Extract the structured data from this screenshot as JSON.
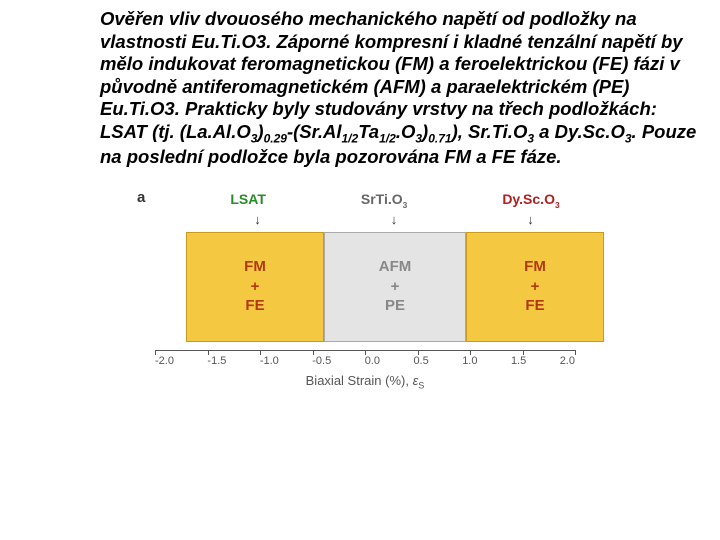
{
  "paragraph": {
    "runs": [
      {
        "t": "Ověřen vliv dvouosého mechanického napětí od podložky na vlastnosti Eu.Ti.O3. Záporné kompresní i kladné tenzální napětí by mělo indukovat feromagnetickou (FM) a feroelektrickou (FE) fázi v původně antiferomagnetickém (AFM) a paraelektrickém (PE) Eu.Ti.O3. Prakticky byly studovány vrstvy na třech podložkách: LSAT (tj. (La.Al.O"
      },
      {
        "t": "3",
        "cls": "sub"
      },
      {
        "t": ")"
      },
      {
        "t": "0.29",
        "cls": "sub"
      },
      {
        "t": "-(Sr.Al"
      },
      {
        "t": "1/2",
        "cls": "sub"
      },
      {
        "t": "Ta"
      },
      {
        "t": "1/2",
        "cls": "sub"
      },
      {
        "t": ".O"
      },
      {
        "t": "3",
        "cls": "sub"
      },
      {
        "t": ")"
      },
      {
        "t": "0.71",
        "cls": "sub"
      },
      {
        "t": "), Sr.Ti.O"
      },
      {
        "t": "3",
        "cls": "sub"
      },
      {
        "t": " a Dy.Sc.O"
      },
      {
        "t": "3",
        "cls": "sub"
      },
      {
        "t": ". Pouze na poslední podložce byla pozorována FM a FE fáze."
      }
    ]
  },
  "diagram": {
    "panel_label": "a",
    "substrates": {
      "lsat": "LSAT",
      "sto_pre": "SrTi.O",
      "sto_sub": "3",
      "dso_pre": "Dy.Sc.O",
      "dso_sub": "3"
    },
    "arrow": "↓",
    "boxes": {
      "left": {
        "l1": "FM",
        "l2": "+",
        "l3": "FE",
        "bg": "#f5c842",
        "fg": "#b03a10"
      },
      "mid": {
        "l1": "AFM",
        "l2": "+",
        "l3": "PE",
        "bg": "#e4e4e4",
        "fg": "#888888"
      },
      "right": {
        "l1": "FM",
        "l2": "+",
        "l3": "FE",
        "bg": "#f5c842",
        "fg": "#b03a10"
      }
    },
    "axis": {
      "ticks": [
        "-2.0",
        "-1.5",
        "-1.0",
        "-0.5",
        "0.0",
        "0.5",
        "1.0",
        "1.5",
        "2.0"
      ],
      "label_pre": "Biaxial Strain (%), ",
      "label_eps": "ε",
      "label_sub": "S",
      "tick_positions_pct": [
        0,
        12.5,
        25,
        37.5,
        50,
        62.5,
        75,
        87.5,
        100
      ]
    }
  }
}
